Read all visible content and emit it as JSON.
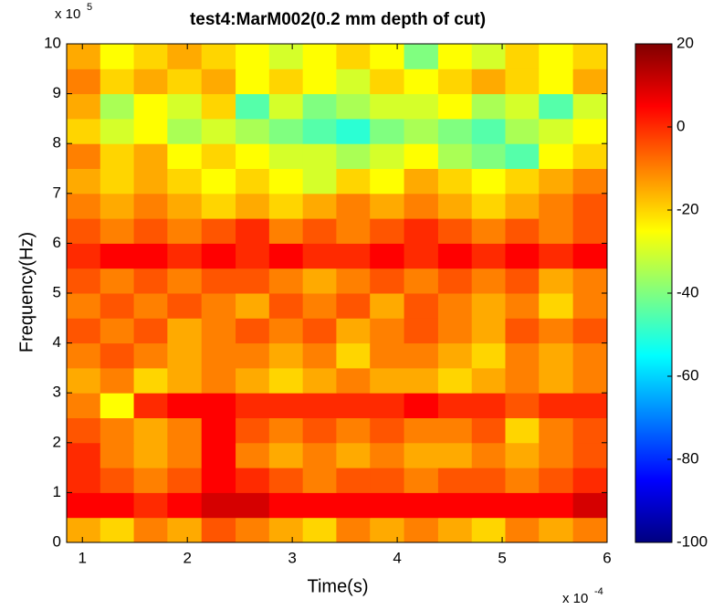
{
  "chart_data": {
    "type": "heatmap",
    "title": "test4:MarM002(0.2 mm depth of cut)",
    "x_label": "Time(s)",
    "y_label": "Frequency(Hz)",
    "x_scale_label": "x 10",
    "x_scale_exponent": "-4",
    "y_scale_label": "x 10",
    "y_scale_exponent": "5",
    "xlim": [
      0.85,
      6
    ],
    "ylim": [
      0,
      10
    ],
    "xticks": [
      1,
      2,
      3,
      4,
      5,
      6
    ],
    "yticks": [
      0,
      1,
      2,
      3,
      4,
      5,
      6,
      7,
      8,
      9,
      10
    ],
    "clim": [
      -100,
      20
    ],
    "cticks": [
      20,
      0,
      -20,
      -40,
      -60,
      -80,
      -100
    ],
    "colormap": "jet",
    "x": [
      1.01,
      1.33,
      1.65,
      1.97,
      2.3,
      2.62,
      2.94,
      3.26,
      3.58,
      3.9,
      4.23,
      4.55,
      4.87,
      5.19,
      5.51,
      5.84
    ],
    "y": [
      0.25,
      0.75,
      1.25,
      1.75,
      2.25,
      2.75,
      3.25,
      3.75,
      4.25,
      4.75,
      5.25,
      5.75,
      6.25,
      6.75,
      7.25,
      7.75,
      8.25,
      8.75,
      9.25,
      9.75
    ],
    "z": [
      [
        -15,
        -20,
        -10,
        -15,
        -5,
        -10,
        -15,
        -20,
        -10,
        -15,
        -10,
        -15,
        -20,
        -10,
        -15,
        -10
      ],
      [
        5,
        5,
        0,
        5,
        10,
        10,
        5,
        5,
        5,
        5,
        5,
        5,
        5,
        5,
        5,
        10
      ],
      [
        0,
        -5,
        -10,
        -5,
        5,
        0,
        -5,
        -10,
        -5,
        -5,
        -10,
        -5,
        -5,
        -10,
        -5,
        0
      ],
      [
        0,
        -10,
        -15,
        -10,
        5,
        -10,
        -15,
        -10,
        -15,
        -10,
        -15,
        -15,
        -10,
        -15,
        -10,
        -5
      ],
      [
        -5,
        -10,
        -15,
        -10,
        5,
        -5,
        -10,
        -5,
        -10,
        -5,
        -10,
        -10,
        -5,
        -20,
        -10,
        -5
      ],
      [
        -10,
        -25,
        0,
        5,
        5,
        0,
        0,
        0,
        0,
        0,
        5,
        0,
        0,
        -5,
        0,
        0
      ],
      [
        -15,
        -10,
        -20,
        -15,
        -10,
        -15,
        -20,
        -15,
        -10,
        -15,
        -15,
        -20,
        -15,
        -10,
        -15,
        -10
      ],
      [
        -10,
        -5,
        -10,
        -15,
        -10,
        -10,
        -15,
        -10,
        -20,
        -10,
        -10,
        -15,
        -20,
        -10,
        -15,
        -10
      ],
      [
        -5,
        -10,
        -5,
        -15,
        -10,
        -5,
        -10,
        -5,
        -15,
        -10,
        -5,
        -10,
        -15,
        -5,
        -10,
        -5
      ],
      [
        -10,
        -5,
        -10,
        -5,
        -10,
        -15,
        -5,
        -10,
        -5,
        -15,
        -5,
        -10,
        -15,
        -10,
        -20,
        -10
      ],
      [
        -5,
        -10,
        -5,
        -10,
        -5,
        -5,
        -10,
        -15,
        -10,
        -5,
        -10,
        -5,
        -10,
        -5,
        -15,
        -10
      ],
      [
        0,
        5,
        5,
        0,
        5,
        0,
        5,
        0,
        0,
        5,
        0,
        5,
        0,
        5,
        0,
        5
      ],
      [
        -5,
        -10,
        -5,
        -10,
        -5,
        0,
        -10,
        -5,
        -10,
        -5,
        0,
        -5,
        -10,
        -5,
        -10,
        -5
      ],
      [
        -10,
        -15,
        -10,
        -15,
        -20,
        -15,
        -20,
        -15,
        -10,
        -15,
        -10,
        -15,
        -20,
        -15,
        -10,
        -5
      ],
      [
        -15,
        -20,
        -15,
        -20,
        -25,
        -20,
        -25,
        -30,
        -20,
        -25,
        -15,
        -20,
        -25,
        -20,
        -15,
        -10
      ],
      [
        -10,
        -20,
        -15,
        -25,
        -20,
        -25,
        -30,
        -30,
        -35,
        -30,
        -25,
        -35,
        -40,
        -45,
        -25,
        -20
      ],
      [
        -20,
        -30,
        -25,
        -35,
        -30,
        -35,
        -40,
        -45,
        -50,
        -40,
        -35,
        -40,
        -45,
        -35,
        -30,
        -25
      ],
      [
        -15,
        -35,
        -25,
        -30,
        -20,
        -45,
        -30,
        -40,
        -35,
        -30,
        -30,
        -25,
        -35,
        -30,
        -45,
        -30
      ],
      [
        -10,
        -20,
        -15,
        -20,
        -15,
        -25,
        -20,
        -25,
        -30,
        -20,
        -25,
        -20,
        -15,
        -20,
        -25,
        -15
      ],
      [
        -15,
        -25,
        -20,
        -15,
        -20,
        -25,
        -30,
        -25,
        -20,
        -25,
        -40,
        -25,
        -30,
        -20,
        -25,
        -20
      ]
    ]
  }
}
